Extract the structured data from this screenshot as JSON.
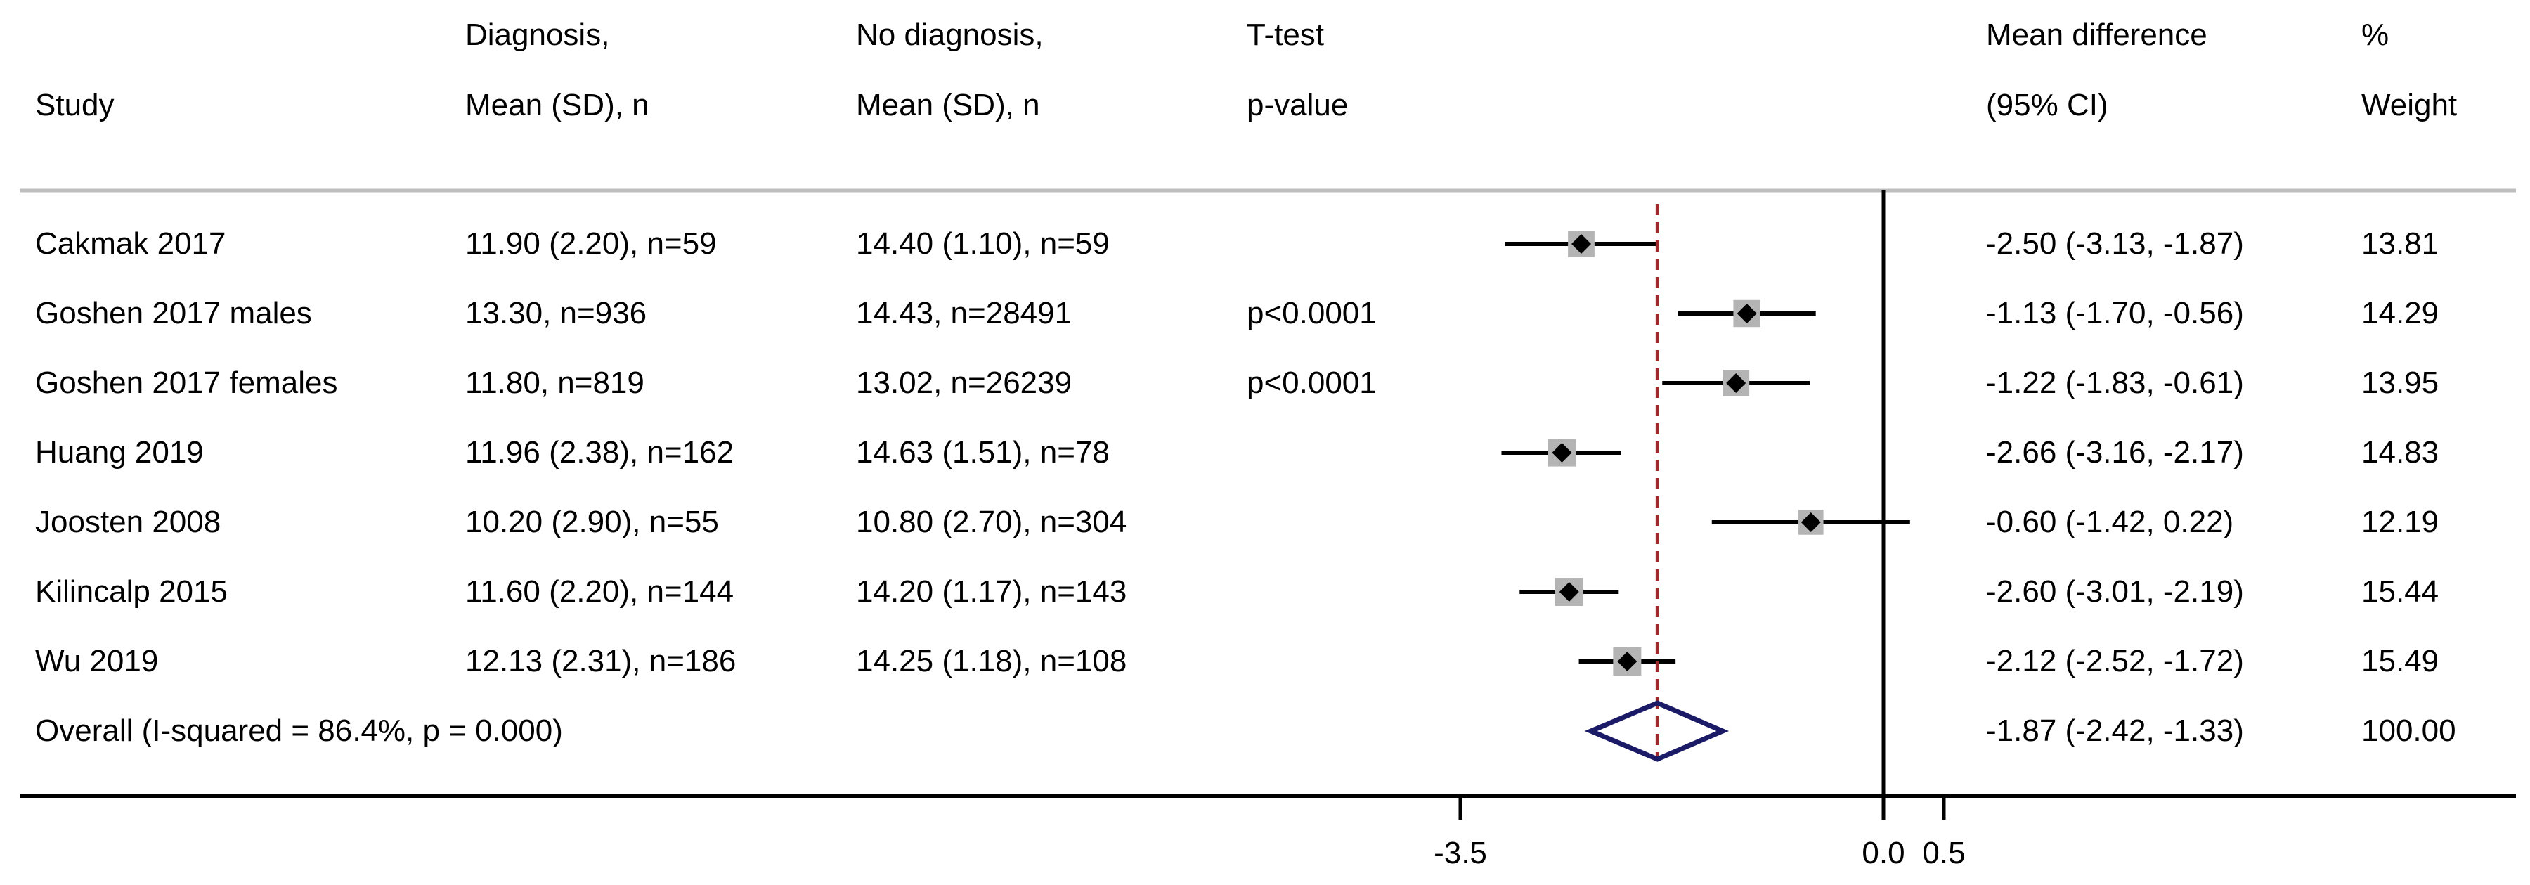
{
  "header": {
    "study": "Study",
    "diagnosis": [
      "Diagnosis,",
      "Mean (SD), n"
    ],
    "no_diagnosis": [
      "No diagnosis,",
      "Mean (SD), n"
    ],
    "ttest": [
      "T-test",
      "p-value"
    ],
    "mean_difference": [
      "Mean difference",
      "(95% CI)"
    ],
    "weight": [
      "%",
      "Weight"
    ]
  },
  "chart_data": {
    "type": "forest",
    "xlabel": "",
    "xlim": [
      -4.0,
      0.9
    ],
    "reference_line": 0.0,
    "overall_line": -1.87,
    "ticks": [
      {
        "value": -3.5,
        "label": "-3.5"
      },
      {
        "value": 0.0,
        "label": "0.0"
      },
      {
        "value": 0.5,
        "label": "0.5"
      }
    ],
    "studies": [
      {
        "study": "Cakmak 2017",
        "diagnosis": "11.90 (2.20), n=59",
        "no_diagnosis": "14.40 (1.10), n=59",
        "p_value": "",
        "effect": -2.5,
        "lower": -3.13,
        "upper": -1.87,
        "ci_text": "-2.50 (-3.13, -1.87)",
        "weight": 13.81,
        "weight_text": "13.81"
      },
      {
        "study": "Goshen 2017 males",
        "diagnosis": "13.30, n=936",
        "no_diagnosis": "14.43, n=28491",
        "p_value": "p<0.0001",
        "effect": -1.13,
        "lower": -1.7,
        "upper": -0.56,
        "ci_text": "-1.13 (-1.70, -0.56)",
        "weight": 14.29,
        "weight_text": "14.29"
      },
      {
        "study": "Goshen 2017 females",
        "diagnosis": "11.80, n=819",
        "no_diagnosis": "13.02, n=26239",
        "p_value": "p<0.0001",
        "effect": -1.22,
        "lower": -1.83,
        "upper": -0.61,
        "ci_text": "-1.22 (-1.83, -0.61)",
        "weight": 13.95,
        "weight_text": "13.95"
      },
      {
        "study": "Huang 2019",
        "diagnosis": "11.96 (2.38), n=162",
        "no_diagnosis": "14.63 (1.51), n=78",
        "p_value": "",
        "effect": -2.66,
        "lower": -3.16,
        "upper": -2.17,
        "ci_text": "-2.66 (-3.16, -2.17)",
        "weight": 14.83,
        "weight_text": "14.83"
      },
      {
        "study": "Joosten 2008",
        "diagnosis": "10.20 (2.90), n=55",
        "no_diagnosis": "10.80 (2.70), n=304",
        "p_value": "",
        "effect": -0.6,
        "lower": -1.42,
        "upper": 0.22,
        "ci_text": "-0.60 (-1.42, 0.22)",
        "weight": 12.19,
        "weight_text": "12.19"
      },
      {
        "study": "Kilincalp 2015",
        "diagnosis": "11.60 (2.20), n=144",
        "no_diagnosis": "14.20 (1.17), n=143",
        "p_value": "",
        "effect": -2.6,
        "lower": -3.01,
        "upper": -2.19,
        "ci_text": "-2.60 (-3.01, -2.19)",
        "weight": 15.44,
        "weight_text": "15.44"
      },
      {
        "study": "Wu 2019",
        "diagnosis": "12.13 (2.31), n=186",
        "no_diagnosis": "14.25 (1.18), n=108",
        "p_value": "",
        "effect": -2.12,
        "lower": -2.52,
        "upper": -1.72,
        "ci_text": "-2.12 (-2.52, -1.72)",
        "weight": 15.49,
        "weight_text": "15.49"
      }
    ],
    "overall": {
      "label": "Overall (I-squared = 86.4%, p = 0.000)",
      "effect": -1.87,
      "lower": -2.42,
      "upper": -1.33,
      "ci_text": "-1.87 (-2.42, -1.33)",
      "weight_text": "100.00"
    }
  },
  "colors": {
    "text": "#000000",
    "ci_line": "#000000",
    "weight_box": "#b4b4b4",
    "point": "#000000",
    "overall_line": "#9e2a2f",
    "diamond": "#1a1a66",
    "separator": "#bebebe",
    "axis": "#000000"
  }
}
